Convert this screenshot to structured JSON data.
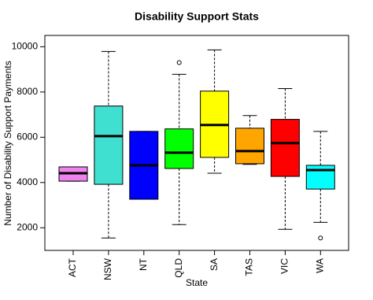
{
  "chart_data": {
    "type": "box",
    "title": "Disability Support Stats",
    "xlabel": "State",
    "ylabel": "Number of Disability Support Payments",
    "categories": [
      "ACT",
      "NSW",
      "NT",
      "QLD",
      "SA",
      "TAS",
      "VIC",
      "WA"
    ],
    "colors": [
      "#ee82ee",
      "#40e0d0",
      "#0000ff",
      "#00ff00",
      "#ffff00",
      "#ffa500",
      "#ff0000",
      "#00ffff"
    ],
    "boxes": [
      {
        "min": 4060,
        "q1": 4060,
        "median": 4410,
        "q3": 4690,
        "max": 4690,
        "outliers": []
      },
      {
        "min": 1550,
        "q1": 3920,
        "median": 6050,
        "q3": 7380,
        "max": 9790,
        "outliers": []
      },
      {
        "min": 3260,
        "q1": 3260,
        "median": 4760,
        "q3": 6260,
        "max": 6260,
        "outliers": []
      },
      {
        "min": 2140,
        "q1": 4620,
        "median": 5320,
        "q3": 6370,
        "max": 8780,
        "outliers": [
          9300
        ]
      },
      {
        "min": 4410,
        "q1": 5110,
        "median": 6540,
        "q3": 8040,
        "max": 9860,
        "outliers": []
      },
      {
        "min": 4800,
        "q1": 4830,
        "median": 5390,
        "q3": 6400,
        "max": 6960,
        "outliers": []
      },
      {
        "min": 1930,
        "q1": 4270,
        "median": 5740,
        "q3": 6790,
        "max": 8150,
        "outliers": []
      },
      {
        "min": 2240,
        "q1": 3710,
        "median": 4550,
        "q3": 4760,
        "max": 6260,
        "outliers": [
          1550
        ]
      }
    ],
    "ylim": [
      1000,
      10500
    ],
    "yticks": [
      2000,
      4000,
      6000,
      8000,
      10000
    ]
  }
}
